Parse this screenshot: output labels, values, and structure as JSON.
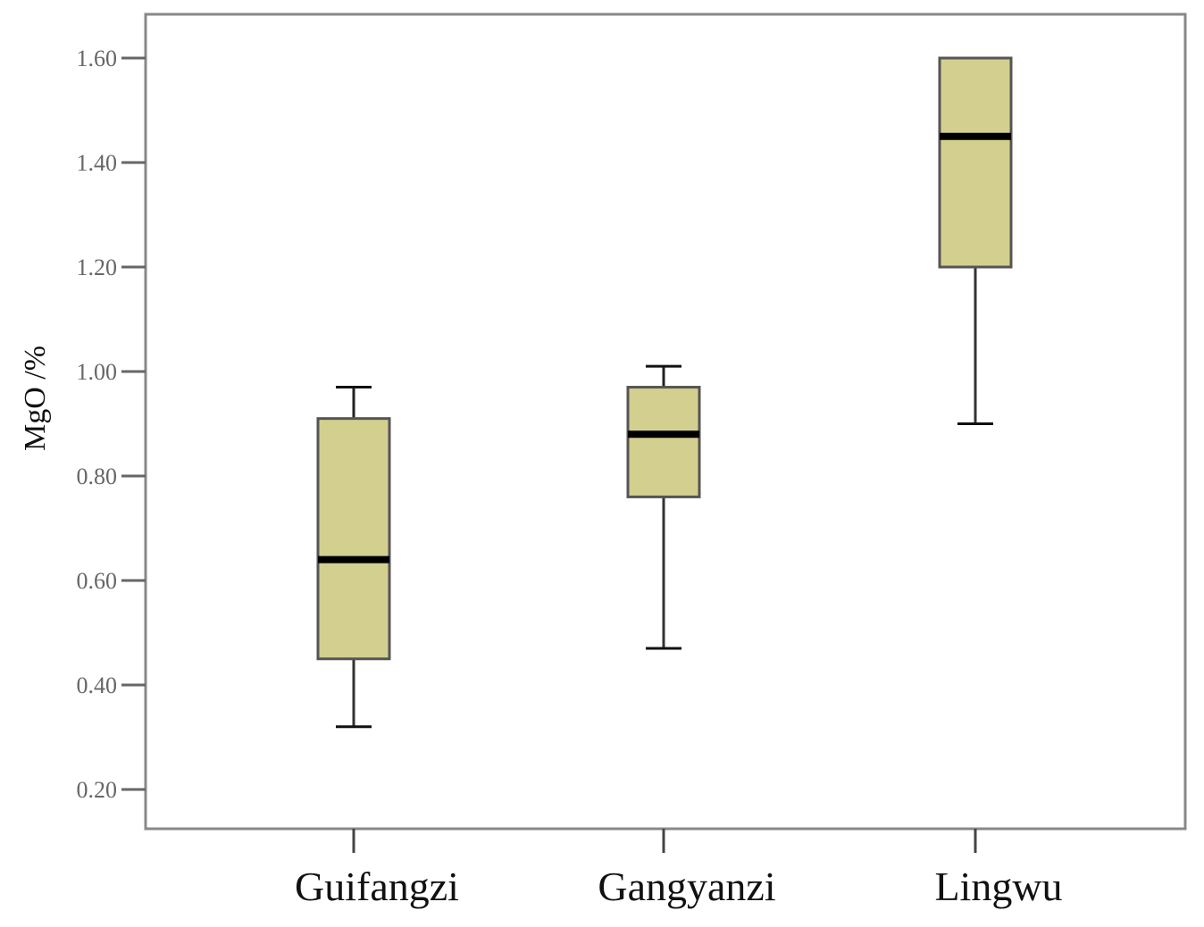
{
  "chart_data": {
    "type": "box",
    "title": "",
    "xlabel": "",
    "ylabel": "MgO /%",
    "ylim": [
      0.13,
      1.68
    ],
    "yticks": [
      "0.20",
      "0.40",
      "0.60",
      "0.80",
      "1.00",
      "1.20",
      "1.40",
      "1.60"
    ],
    "grid": false,
    "categories": [
      "Guifangzi",
      "Gangyanzi",
      "Lingwu"
    ],
    "boxes": [
      {
        "name": "Guifangzi",
        "min": 0.32,
        "q1": 0.45,
        "median": 0.64,
        "q3": 0.91,
        "max": 0.97
      },
      {
        "name": "Gangyanzi",
        "min": 0.47,
        "q1": 0.76,
        "median": 0.88,
        "q3": 0.97,
        "max": 1.01
      },
      {
        "name": "Lingwu",
        "min": 0.9,
        "q1": 1.2,
        "median": 1.45,
        "q3": 1.6,
        "max": 1.6
      }
    ],
    "colors": {
      "box_fill": "#d3cf8f",
      "box_stroke": "#555555",
      "median": "#000000",
      "frame": "#888888"
    }
  }
}
